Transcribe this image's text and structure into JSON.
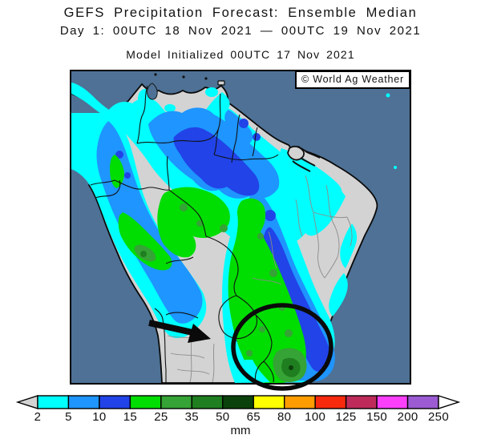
{
  "header": {
    "title": "GEFS Precipitation Forecast: Ensemble Median",
    "period": "Day 1: 00UTC 18 Nov 2021 — 00UTC 19 Nov 2021",
    "initialized": "Model Initialized 00UTC 17 Nov 2021"
  },
  "map": {
    "watermark": "© World Ag Weather",
    "region": "South America",
    "ocean_color": "#4E7195",
    "land_color": "#D3D3D3",
    "annotations": {
      "arrow": "black arrow pointing at dry Paraguay / northern Argentina",
      "ellipse": "black ellipse circling southern Brazil precipitation area"
    }
  },
  "legend": {
    "unit": "mm",
    "ticks": [
      "2",
      "5",
      "10",
      "15",
      "25",
      "35",
      "50",
      "65",
      "80",
      "100",
      "125",
      "150",
      "200",
      "250"
    ],
    "colors": [
      "#00FFFF",
      "#1E95FF",
      "#2143E8",
      "#00DD00",
      "#35A335",
      "#1F7E1F",
      "#0B420B",
      "#FFFF00",
      "#FF9C00",
      "#F82A0E",
      "#BE2B5B",
      "#FB3FFB",
      "#9C5BD2"
    ],
    "below_min_color": "#D3D3D3",
    "above_max_color": "#FFFFFF"
  }
}
